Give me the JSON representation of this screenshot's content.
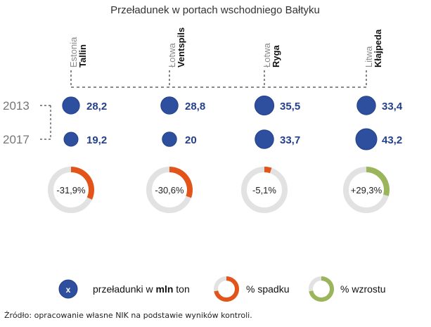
{
  "chart_data": {
    "type": "bubble-comparison",
    "title": "Przeładunek w portach wschodniego Bałtyku",
    "years": [
      "2013",
      "2017"
    ],
    "ports": [
      {
        "country": "Estonia",
        "port": "Tallin",
        "values": [
          28.2,
          19.2
        ],
        "value_labels": [
          "28,2",
          "19,2"
        ],
        "change_label": "-31,9%",
        "change": -31.9
      },
      {
        "country": "Łotwa",
        "port": "Ventspils",
        "values": [
          28.8,
          20
        ],
        "value_labels": [
          "28,8",
          "20"
        ],
        "change_label": "-30,6%",
        "change": -30.6
      },
      {
        "country": "Łotwa",
        "port": "Ryga",
        "values": [
          35.5,
          33.7
        ],
        "value_labels": [
          "35,5",
          "33,7"
        ],
        "change_label": "-5,1%",
        "change": -5.1
      },
      {
        "country": "Litwa",
        "port": "Kłajpeda",
        "values": [
          33.4,
          43.2
        ],
        "value_labels": [
          "33,4",
          "43,2"
        ],
        "change_label": "+29,3%",
        "change": 29.3
      }
    ],
    "legend": {
      "bubble_symbol": "x",
      "bubble_label_before": "przeładunki w ",
      "bubble_label_bold": "mln",
      "bubble_label_after": " ton",
      "decrease_label": "% spadku",
      "increase_label": "% wzrostu"
    },
    "colors": {
      "bubble": "#2e4e9e",
      "bubble_stroke": "#23408a",
      "value_text": "#23408a",
      "decrease": "#e2541a",
      "increase": "#9ab55a",
      "ring_track": "#e2e2e2",
      "dash": "#444444",
      "year_text": "#777777",
      "country_text": "#8a8a8a"
    }
  },
  "source": "Źródło: opracowanie własne NIK na podstawie wyników kontroli."
}
